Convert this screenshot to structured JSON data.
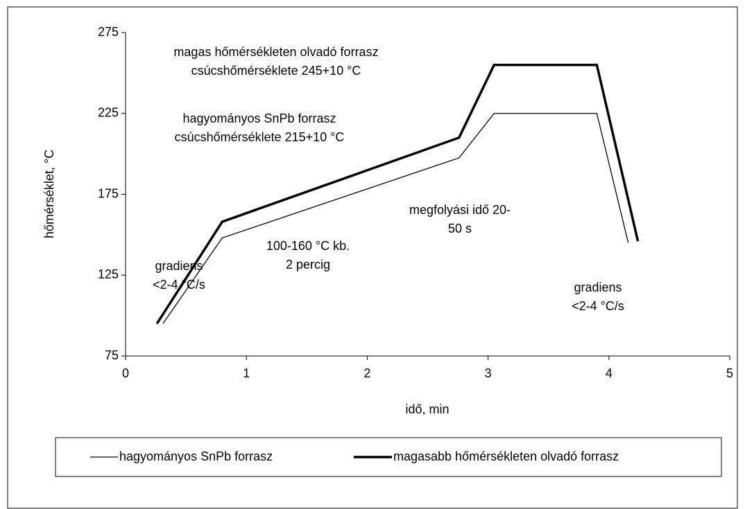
{
  "chart_data": {
    "type": "line",
    "xlabel": "idő, min",
    "ylabel": "hőmérséklet, °C",
    "xlim": [
      0,
      5
    ],
    "xticks": [
      0,
      1,
      2,
      3,
      4,
      5
    ],
    "ylim": [
      75,
      275
    ],
    "yticks": [
      75,
      125,
      175,
      225,
      275
    ],
    "series": [
      {
        "name": "hagyományos SnPb forrasz",
        "color": "#000000",
        "line_width": "thin",
        "x": [
          0.31,
          0.8,
          2.76,
          3.05,
          3.9,
          4.16
        ],
        "values": [
          95,
          148,
          197.5,
          225,
          225,
          145
        ]
      },
      {
        "name": "magasabb hőmérsékleten olvadó forrasz",
        "color": "#000000",
        "line_width": "thick",
        "x": [
          0.26,
          0.8,
          2.76,
          3.05,
          3.9,
          4.24
        ],
        "values": [
          95,
          158,
          210,
          255,
          255,
          146
        ]
      }
    ],
    "annotations": [
      {
        "lines": [
          "magas hőmérsékleten olvadó  forrasz",
          "csúcshőmérséklete 245+10 °C"
        ]
      },
      {
        "lines": [
          "hagyományos SnPb forrasz",
          "csúcshőmérséklete 215+10 °C"
        ]
      },
      {
        "lines": [
          "megfolyási idő 20-",
          "50 s"
        ]
      },
      {
        "lines": [
          "100-160 °C kb.",
          "2 percig"
        ]
      },
      {
        "lines": [
          "gradiens",
          "<2-4 °C/s"
        ]
      },
      {
        "lines": [
          "gradiens",
          "<2-4 °C/s"
        ]
      }
    ],
    "legend": "bottom"
  }
}
